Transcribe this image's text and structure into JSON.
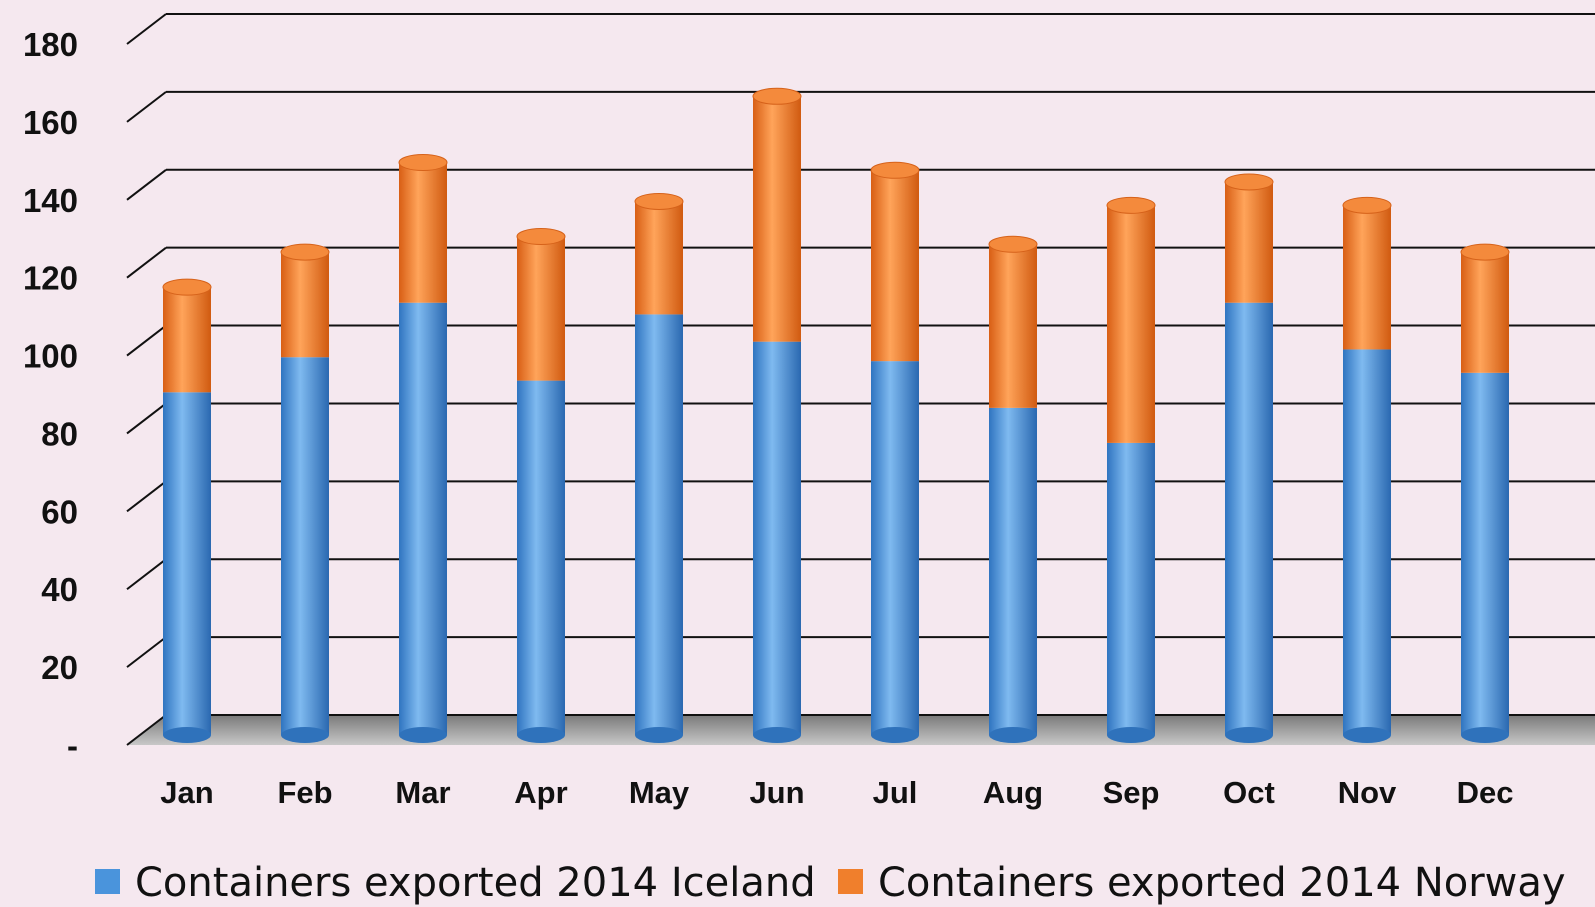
{
  "chart_data": {
    "type": "bar",
    "stacked": true,
    "categories": [
      "Jan",
      "Feb",
      "Mar",
      "Apr",
      "May",
      "Jun",
      "Jul",
      "Aug",
      "Sep",
      "Oct",
      "Nov",
      "Dec"
    ],
    "series": [
      {
        "name": "Containers exported 2014 Iceland",
        "color": "#4a94dc",
        "values": [
          88,
          97,
          111,
          91,
          108,
          101,
          96,
          84,
          75,
          111,
          99,
          93
        ]
      },
      {
        "name": "Containers exported 2014 Norway",
        "color": "#f07f2c",
        "values": [
          27,
          27,
          36,
          37,
          29,
          63,
          49,
          42,
          61,
          31,
          37,
          31
        ]
      }
    ],
    "ylim": [
      0,
      180
    ],
    "yticks": [
      {
        "value": 0,
        "label": "-"
      },
      {
        "value": 20,
        "label": "20"
      },
      {
        "value": 40,
        "label": "40"
      },
      {
        "value": 60,
        "label": "60"
      },
      {
        "value": 80,
        "label": "80"
      },
      {
        "value": 100,
        "label": "100"
      },
      {
        "value": 120,
        "label": "120"
      },
      {
        "value": 140,
        "label": "140"
      },
      {
        "value": 160,
        "label": "160"
      },
      {
        "value": 180,
        "label": "180"
      }
    ],
    "grid": true,
    "legend": "bottom",
    "style": "3d-cylinder"
  }
}
